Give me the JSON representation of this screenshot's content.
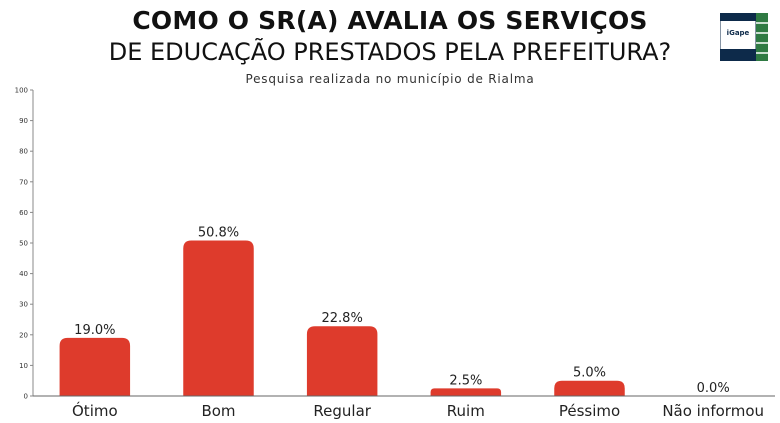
{
  "header": {
    "title_line1": "COMO O SR(A) AVALIA OS SERVIÇOS",
    "title_line2": "DE EDUCAÇÃO PRESTADOS PELA PREFEITURA?",
    "subtitle": "Pesquisa realizada no município de Rialma"
  },
  "logo": {
    "text": "iGape"
  },
  "colors": {
    "bar": "#de3b2c",
    "logo_green": "#2f7a43",
    "logo_navy": "#0d2a4a"
  },
  "chart_data": {
    "type": "bar",
    "categories": [
      "Ótimo",
      "Bom",
      "Regular",
      "Ruim",
      "Péssimo",
      "Não informou"
    ],
    "values": [
      19.0,
      50.8,
      22.8,
      2.5,
      5.0,
      0.0
    ],
    "value_labels": [
      "19.0%",
      "50.8%",
      "22.8%",
      "2.5%",
      "5.0%",
      "0.0%"
    ],
    "ylim": [
      0,
      100
    ],
    "yticks": [
      0,
      10,
      20,
      30,
      40,
      50,
      60,
      70,
      80,
      90,
      100
    ],
    "grid": false,
    "legend": "none"
  }
}
